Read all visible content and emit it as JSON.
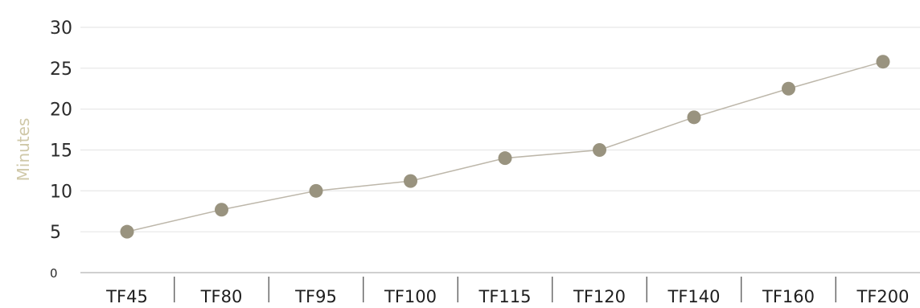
{
  "chart_data": {
    "type": "line",
    "title": "",
    "xlabel": "",
    "ylabel": "Minutes",
    "categories": [
      "TF45",
      "TF80",
      "TF95",
      "TF100",
      "TF115",
      "TF120",
      "TF140",
      "TF160",
      "TF200"
    ],
    "series": [
      {
        "values": [
          5,
          7.7,
          10,
          11.2,
          14,
          15,
          19,
          22.5,
          25.8
        ]
      }
    ],
    "ylim": [
      0,
      30
    ],
    "yticks": [
      0,
      5,
      10,
      15,
      20,
      25,
      30
    ],
    "grid": true,
    "legend": "none",
    "colors": {
      "line": "#bdb7aa",
      "marker": "#99937f",
      "ylabel": "#cfc8a8",
      "grid": "#e6e6e6"
    }
  }
}
